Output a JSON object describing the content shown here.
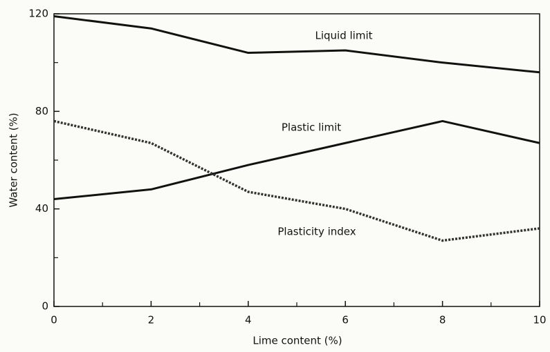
{
  "chart_data": {
    "type": "line",
    "x_label": "Lime content (%)",
    "y_label": "Water content (%)",
    "x": [
      0,
      2,
      4,
      6,
      8,
      10
    ],
    "series": [
      {
        "name": "Liquid limit",
        "color": "#111111",
        "dashed": false,
        "values": [
          119,
          114,
          104,
          105,
          100,
          96
        ]
      },
      {
        "name": "Plastic limit",
        "color": "#111111",
        "dashed": false,
        "values": [
          44,
          48,
          58,
          67,
          76,
          67
        ]
      },
      {
        "name": "Plasticity index",
        "color": "#333333",
        "dashed": true,
        "values": [
          76,
          67,
          47,
          40,
          27,
          32
        ]
      }
    ],
    "xlim": [
      0,
      10
    ],
    "xticks": [
      0,
      2,
      4,
      6,
      8,
      10
    ],
    "xminor": [
      1,
      3,
      5,
      7,
      9
    ],
    "ylim": [
      0,
      120
    ],
    "yticks": [
      0,
      40,
      80,
      120
    ],
    "yminor": [
      20,
      60,
      100
    ],
    "grid": false
  }
}
